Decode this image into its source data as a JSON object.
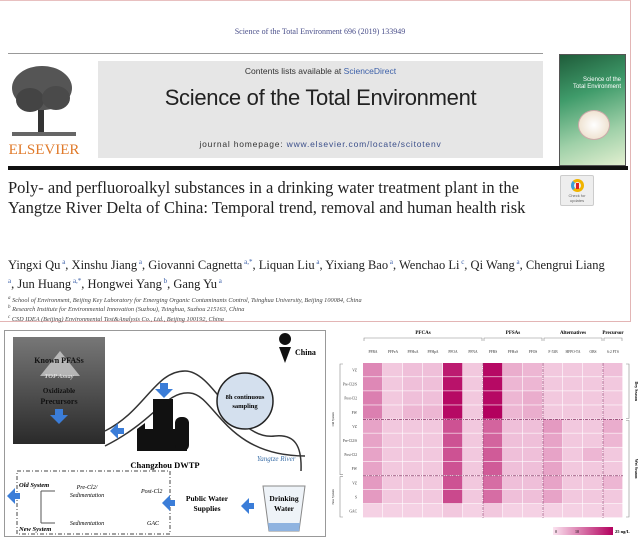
{
  "header": {
    "citation": "Science of the Total Environment 696 (2019) 133949",
    "contents_prefix": "Contents lists available at ",
    "contents_link": "ScienceDirect",
    "journal_title": "Science of the Total Environment",
    "homepage_prefix": "journal homepage: ",
    "homepage_url": "www.elsevier.com/locate/scitotenv",
    "publisher": "ELSEVIER",
    "cover_title": "Science of the Total Environment"
  },
  "article": {
    "title": "Poly- and perfluoroalkyl substances in a drinking water treatment plant in the Yangtze River Delta of China: Temporal trend, removal and human health risk",
    "check_badge": "Check for updates",
    "authors": [
      {
        "name": "Yingxi Qu",
        "aff": "a"
      },
      {
        "name": "Xinshu Jiang",
        "aff": "a"
      },
      {
        "name": "Giovanni Cagnetta",
        "aff": "a,*"
      },
      {
        "name": "Liquan Liu",
        "aff": "a"
      },
      {
        "name": "Yixiang Bao",
        "aff": "a"
      },
      {
        "name": "Wenchao Li",
        "aff": "c"
      },
      {
        "name": "Qi Wang",
        "aff": "a"
      },
      {
        "name": "Chengrui Liang",
        "aff": "a"
      },
      {
        "name": "Jun Huang",
        "aff": "a,*"
      },
      {
        "name": "Hongwei Yang",
        "aff": "b"
      },
      {
        "name": "Gang Yu",
        "aff": "a"
      }
    ],
    "affiliations": [
      {
        "key": "a",
        "text": "School of Environment, Beijing Key Laboratory for Emerging Organic Contaminants Control, Tsinghua University, Beijing 100084, China"
      },
      {
        "key": "b",
        "text": "Research Institute for Environmental Innovation (Suzhou), Tsinghua, Suzhou 215163, China"
      },
      {
        "key": "c",
        "text": "CSD IDEA (Beijing) Environmental Test&Analysis Co., Ltd., Beijing 100192, China"
      }
    ]
  },
  "graphical_abstract": {
    "iceberg_top": "Known PFASs",
    "assay": "TOP Assay",
    "iceberg_bottom_1": "Oxidizable",
    "iceberg_bottom_2": "Precursors",
    "country": "China",
    "clock_1": "8h continuous",
    "clock_2": "sampling",
    "plant": "Changzhou DWTP",
    "river": "Yangtze River",
    "old_system": "Old System",
    "new_system": "New System",
    "old_step1a": "Pre-Cl2/",
    "old_step1b": "Sedimentation",
    "old_step2": "Post-Cl2",
    "new_step1": "Sedimentation",
    "new_step2": "GAC",
    "supplies_1": "Public Water",
    "supplies_2": "Supplies",
    "drinking_1": "Drinking",
    "drinking_2": "Water",
    "accent": "#3b7dd8"
  },
  "chart_data": {
    "type": "heatmap",
    "groups": [
      {
        "label": "PFCAs",
        "span": 6
      },
      {
        "label": "PFSAs",
        "span": 3
      },
      {
        "label": "Alternatives",
        "span": 3
      },
      {
        "label": "Precursor",
        "span": 1
      }
    ],
    "columns": [
      "PFBA",
      "PFPeA",
      "PFHxA",
      "PFHpA",
      "PFOA",
      "PFNA",
      "PFBS",
      "PFHxS",
      "PFOS",
      "F-53B",
      "HFPO-TA",
      "OBS",
      "6:2 FTS"
    ],
    "rows": [
      "VZ",
      "Pre-Cl2/S",
      "Post-Cl2",
      "FW",
      "VZ",
      "Pre-Cl2/S",
      "Post-Cl2",
      "FW",
      "VZ",
      "S",
      "GAC"
    ],
    "row_groups_left": [
      {
        "label": "Old System",
        "span": 8
      },
      {
        "label": "New System",
        "span": 3
      }
    ],
    "row_groups_right": [
      {
        "label": "Dry Season",
        "span": 4
      },
      {
        "label": "Wet Season",
        "span": 7
      }
    ],
    "values": [
      [
        10,
        3,
        4,
        4,
        22,
        3,
        24,
        6,
        5,
        3,
        3,
        3,
        4
      ],
      [
        10,
        3,
        4,
        4,
        23,
        3,
        24,
        5,
        5,
        3,
        3,
        3,
        3
      ],
      [
        11,
        3,
        4,
        4,
        24,
        3,
        24,
        5,
        6,
        3,
        3,
        3,
        3
      ],
      [
        11,
        3,
        5,
        5,
        24,
        3,
        25,
        5,
        6,
        3,
        3,
        3,
        3
      ],
      [
        7,
        3,
        3,
        3,
        16,
        3,
        14,
        4,
        4,
        8,
        3,
        3,
        6
      ],
      [
        7,
        3,
        3,
        3,
        16,
        3,
        14,
        4,
        4,
        7,
        3,
        3,
        5
      ],
      [
        7,
        3,
        3,
        3,
        16,
        3,
        15,
        4,
        4,
        7,
        3,
        5,
        3
      ],
      [
        7,
        3,
        3,
        3,
        16,
        3,
        15,
        4,
        4,
        7,
        3,
        3,
        3
      ],
      [
        8,
        3,
        3,
        3,
        16,
        3,
        13,
        4,
        4,
        7,
        3,
        3,
        5
      ],
      [
        8,
        3,
        3,
        3,
        17,
        3,
        13,
        4,
        4,
        7,
        3,
        3,
        3
      ],
      [
        2,
        2,
        2,
        2,
        3,
        2,
        3,
        2,
        2,
        2,
        2,
        2,
        2
      ]
    ],
    "colorbar": {
      "min_label": "0",
      "mid_label": "10",
      "max_label": "25 ng/L",
      "range": [
        0,
        25
      ],
      "color_low": "#fbe3f0",
      "color_high": "#b3005e"
    }
  }
}
